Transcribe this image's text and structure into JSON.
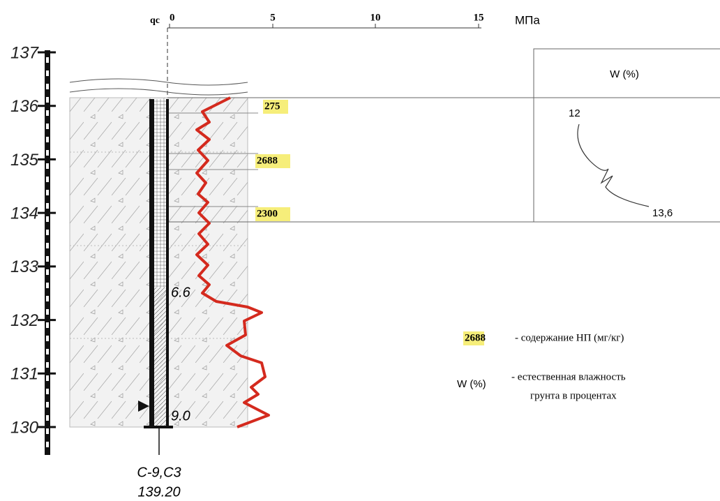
{
  "elevation_scale": {
    "labels": [
      "137",
      "136",
      "135",
      "134",
      "133",
      "132",
      "131",
      "130"
    ]
  },
  "qc_axis": {
    "label": "qc",
    "ticks": [
      "0",
      "5",
      "10",
      "15"
    ],
    "unit": "МПа"
  },
  "samples": [
    {
      "value": "275"
    },
    {
      "value": "2688"
    },
    {
      "value": "2300"
    }
  ],
  "depth_labels": [
    "6.6",
    "9.0"
  ],
  "borehole": {
    "name": "С-9,С3",
    "elevation": "139.20"
  },
  "moisture_panel": {
    "header": "W (%)",
    "top_value": "12",
    "bottom_value": "13,6"
  },
  "legend": [
    {
      "key": "2688",
      "text": "- содержание НП (мг/кг)"
    },
    {
      "key": "W (%)",
      "text_lines": [
        "- естественная влажность",
        "грунта в процентах"
      ]
    }
  ]
}
